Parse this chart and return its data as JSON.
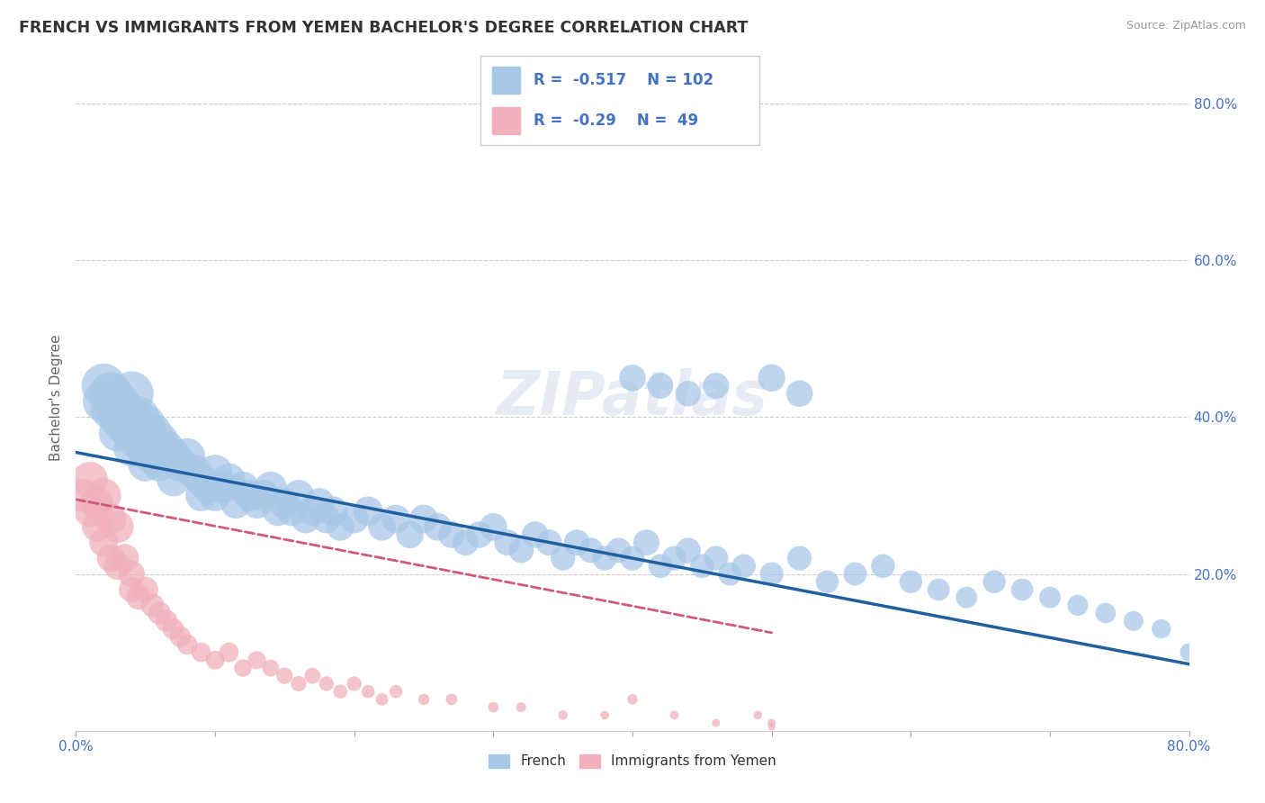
{
  "title": "FRENCH VS IMMIGRANTS FROM YEMEN BACHELOR'S DEGREE CORRELATION CHART",
  "source": "Source: ZipAtlas.com",
  "ylabel": "Bachelor's Degree",
  "xlim": [
    0.0,
    0.8
  ],
  "ylim": [
    0.0,
    0.85
  ],
  "french_R": -0.517,
  "french_N": 102,
  "yemen_R": -0.29,
  "yemen_N": 49,
  "french_color": "#a8c8e8",
  "french_line_color": "#2060a0",
  "yemen_color": "#f0b0bc",
  "yemen_line_color": "#d05878",
  "watermark": "ZIPatlas",
  "french_scatter_x": [
    0.02,
    0.02,
    0.025,
    0.025,
    0.03,
    0.03,
    0.03,
    0.035,
    0.035,
    0.04,
    0.04,
    0.04,
    0.04,
    0.045,
    0.045,
    0.05,
    0.05,
    0.05,
    0.055,
    0.055,
    0.06,
    0.06,
    0.065,
    0.07,
    0.07,
    0.075,
    0.08,
    0.085,
    0.09,
    0.09,
    0.095,
    0.1,
    0.1,
    0.105,
    0.11,
    0.115,
    0.12,
    0.125,
    0.13,
    0.135,
    0.14,
    0.145,
    0.15,
    0.155,
    0.16,
    0.165,
    0.17,
    0.175,
    0.18,
    0.185,
    0.19,
    0.2,
    0.21,
    0.22,
    0.23,
    0.24,
    0.25,
    0.26,
    0.27,
    0.28,
    0.29,
    0.3,
    0.31,
    0.32,
    0.33,
    0.34,
    0.35,
    0.36,
    0.37,
    0.38,
    0.39,
    0.4,
    0.41,
    0.42,
    0.43,
    0.44,
    0.45,
    0.46,
    0.47,
    0.48,
    0.5,
    0.52,
    0.54,
    0.56,
    0.58,
    0.6,
    0.62,
    0.64,
    0.66,
    0.68,
    0.7,
    0.72,
    0.74,
    0.76,
    0.78,
    0.8,
    0.4,
    0.42,
    0.44,
    0.46,
    0.5,
    0.52
  ],
  "french_scatter_y": [
    0.44,
    0.42,
    0.43,
    0.41,
    0.42,
    0.4,
    0.38,
    0.41,
    0.39,
    0.43,
    0.4,
    0.38,
    0.36,
    0.4,
    0.37,
    0.39,
    0.36,
    0.34,
    0.38,
    0.35,
    0.37,
    0.34,
    0.36,
    0.35,
    0.32,
    0.34,
    0.35,
    0.33,
    0.32,
    0.3,
    0.31,
    0.33,
    0.3,
    0.31,
    0.32,
    0.29,
    0.31,
    0.3,
    0.29,
    0.3,
    0.31,
    0.28,
    0.29,
    0.28,
    0.3,
    0.27,
    0.28,
    0.29,
    0.27,
    0.28,
    0.26,
    0.27,
    0.28,
    0.26,
    0.27,
    0.25,
    0.27,
    0.26,
    0.25,
    0.24,
    0.25,
    0.26,
    0.24,
    0.23,
    0.25,
    0.24,
    0.22,
    0.24,
    0.23,
    0.22,
    0.23,
    0.22,
    0.24,
    0.21,
    0.22,
    0.23,
    0.21,
    0.22,
    0.2,
    0.21,
    0.2,
    0.22,
    0.19,
    0.2,
    0.21,
    0.19,
    0.18,
    0.17,
    0.19,
    0.18,
    0.17,
    0.16,
    0.15,
    0.14,
    0.13,
    0.1,
    0.45,
    0.44,
    0.43,
    0.44,
    0.45,
    0.43
  ],
  "french_scatter_sizes": [
    180,
    160,
    170,
    150,
    160,
    140,
    130,
    150,
    140,
    180,
    160,
    140,
    120,
    160,
    140,
    150,
    130,
    110,
    140,
    120,
    130,
    110,
    120,
    120,
    100,
    110,
    120,
    110,
    100,
    90,
    95,
    110,
    90,
    95,
    100,
    85,
    95,
    90,
    85,
    90,
    95,
    80,
    85,
    80,
    90,
    75,
    80,
    85,
    75,
    80,
    70,
    75,
    80,
    70,
    75,
    68,
    75,
    70,
    65,
    62,
    65,
    70,
    62,
    58,
    65,
    62,
    55,
    62,
    58,
    55,
    58,
    55,
    62,
    52,
    55,
    58,
    52,
    55,
    50,
    52,
    50,
    55,
    48,
    50,
    52,
    48,
    45,
    42,
    48,
    45,
    42,
    40,
    38,
    36,
    34,
    30,
    65,
    62,
    60,
    62,
    68,
    65
  ],
  "yemen_scatter_x": [
    0.005,
    0.01,
    0.01,
    0.015,
    0.015,
    0.02,
    0.02,
    0.025,
    0.025,
    0.03,
    0.03,
    0.035,
    0.04,
    0.04,
    0.045,
    0.05,
    0.055,
    0.06,
    0.065,
    0.07,
    0.075,
    0.08,
    0.09,
    0.1,
    0.11,
    0.12,
    0.13,
    0.14,
    0.15,
    0.16,
    0.17,
    0.18,
    0.19,
    0.2,
    0.21,
    0.22,
    0.23,
    0.25,
    0.27,
    0.3,
    0.32,
    0.35,
    0.38,
    0.4,
    0.43,
    0.46,
    0.49,
    0.5,
    0.5
  ],
  "yemen_scatter_y": [
    0.3,
    0.32,
    0.28,
    0.29,
    0.26,
    0.3,
    0.24,
    0.27,
    0.22,
    0.26,
    0.21,
    0.22,
    0.2,
    0.18,
    0.17,
    0.18,
    0.16,
    0.15,
    0.14,
    0.13,
    0.12,
    0.11,
    0.1,
    0.09,
    0.1,
    0.08,
    0.09,
    0.08,
    0.07,
    0.06,
    0.07,
    0.06,
    0.05,
    0.06,
    0.05,
    0.04,
    0.05,
    0.04,
    0.04,
    0.03,
    0.03,
    0.02,
    0.02,
    0.04,
    0.02,
    0.01,
    0.02,
    0.01,
    0.005
  ],
  "yemen_scatter_sizes": [
    100,
    120,
    90,
    100,
    80,
    110,
    75,
    90,
    70,
    95,
    70,
    75,
    65,
    60,
    55,
    60,
    50,
    48,
    45,
    42,
    40,
    38,
    35,
    32,
    35,
    28,
    30,
    26,
    25,
    22,
    24,
    20,
    18,
    20,
    16,
    14,
    16,
    12,
    12,
    10,
    9,
    8,
    7,
    10,
    7,
    6,
    7,
    6,
    5
  ],
  "french_line_x0": 0.0,
  "french_line_y0": 0.355,
  "french_line_x1": 0.8,
  "french_line_y1": 0.085,
  "yemen_line_x0": 0.0,
  "yemen_line_y0": 0.295,
  "yemen_line_x1": 0.5,
  "yemen_line_y1": 0.125
}
